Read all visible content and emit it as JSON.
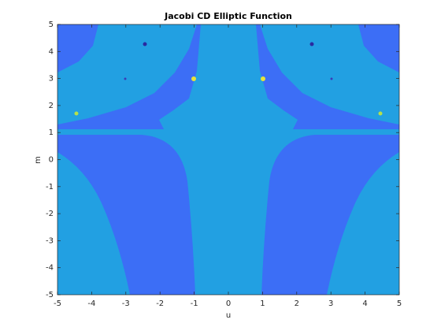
{
  "chart_data": {
    "type": "contour",
    "title": "Jacobi CD Elliptic Function",
    "x_label": "u",
    "y_label": "m",
    "xlim": [
      -5,
      5
    ],
    "ylim": [
      -5,
      5
    ],
    "xticks": [
      -5,
      -4,
      -3,
      -2,
      -1,
      0,
      1,
      2,
      3,
      4,
      5
    ],
    "yticks": [
      -5,
      -4,
      -3,
      -2,
      -1,
      0,
      1,
      2,
      3,
      4,
      5
    ]
  }
}
